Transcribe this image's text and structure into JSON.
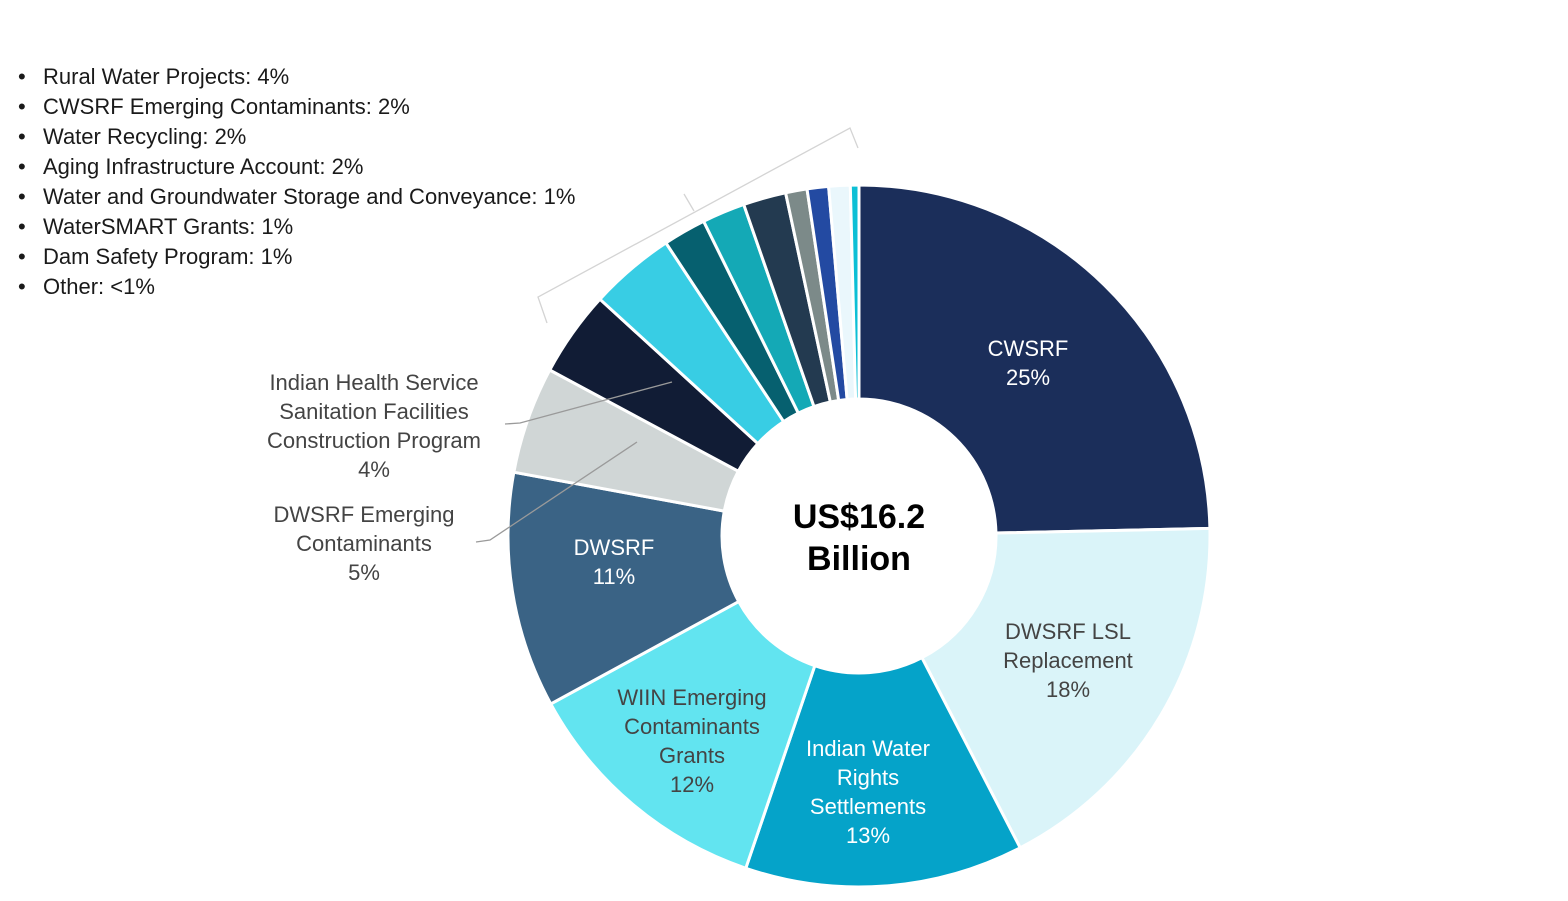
{
  "chart_data": {
    "type": "pie",
    "center_label": [
      "US$16.2",
      "Billion"
    ],
    "slices": [
      {
        "label": [
          "CWSRF"
        ],
        "value": 25,
        "display": "25%",
        "color": "#1b2e5a",
        "text_color": "#ffffff"
      },
      {
        "label": [
          "DWSRF LSL",
          "Replacement"
        ],
        "value": 18,
        "display": "18%",
        "color": "#daf4f9",
        "text_color": "#444444"
      },
      {
        "label": [
          "Indian Water",
          "Rights",
          "Settlements"
        ],
        "value": 13,
        "display": "13%",
        "color": "#05a3c9",
        "text_color": "#ffffff"
      },
      {
        "label": [
          "WIIN Emerging",
          "Contaminants",
          "Grants"
        ],
        "value": 12,
        "display": "12%",
        "color": "#62e4f0",
        "text_color": "#444444"
      },
      {
        "label": [
          "DWSRF"
        ],
        "value": 11,
        "display": "11%",
        "color": "#3a6385",
        "text_color": "#ffffff"
      },
      {
        "label": [
          "DWSRF Emerging",
          "Contaminants"
        ],
        "value": 5,
        "display": "5%",
        "color": "#d0d6d6",
        "text_color": "#444444"
      },
      {
        "label": [
          "Indian Health Service",
          "Sanitation Facilities",
          "Construction Program"
        ],
        "value": 4,
        "display": "4%",
        "color": "#111c35",
        "text_color": "#444444"
      },
      {
        "label": [
          "Rural Water Projects"
        ],
        "value": 4,
        "display": "4%",
        "color": "#38cde4",
        "text_color": "#444444"
      },
      {
        "label": [
          "CWSRF Emerging Contaminants"
        ],
        "value": 2,
        "display": "2%",
        "color": "#06606f",
        "text_color": "#444444"
      },
      {
        "label": [
          "Water Recycling"
        ],
        "value": 2,
        "display": "2%",
        "color": "#14a9b6",
        "text_color": "#444444"
      },
      {
        "label": [
          "Aging Infrastructure Account"
        ],
        "value": 2,
        "display": "2%",
        "color": "#233a50",
        "text_color": "#444444"
      },
      {
        "label": [
          "Water and Groundwater Storage and Conveyance"
        ],
        "value": 1,
        "display": "1%",
        "color": "#7c8a89",
        "text_color": "#444444"
      },
      {
        "label": [
          "WaterSMART Grants"
        ],
        "value": 1,
        "display": "1%",
        "color": "#234aa2",
        "text_color": "#444444"
      },
      {
        "label": [
          "Dam Safety Program"
        ],
        "value": 1,
        "display": "1%",
        "color": "#eaf7fc",
        "text_color": "#444444"
      },
      {
        "label": [
          "Other"
        ],
        "value": 0.4,
        "display": "<1%",
        "color": "#0dbfd5",
        "text_color": "#444444"
      }
    ],
    "legend_list": [
      "Rural Water Projects: 4%",
      "CWSRF Emerging Contaminants: 2%",
      "Water Recycling: 2%",
      "Aging Infrastructure Account: 2%",
      "Water and Groundwater Storage and Conveyance: 1%",
      "WaterSMART Grants: 1%",
      "Dam Safety Program: 1%",
      "Other: <1%"
    ],
    "legend_bullet": "•"
  }
}
